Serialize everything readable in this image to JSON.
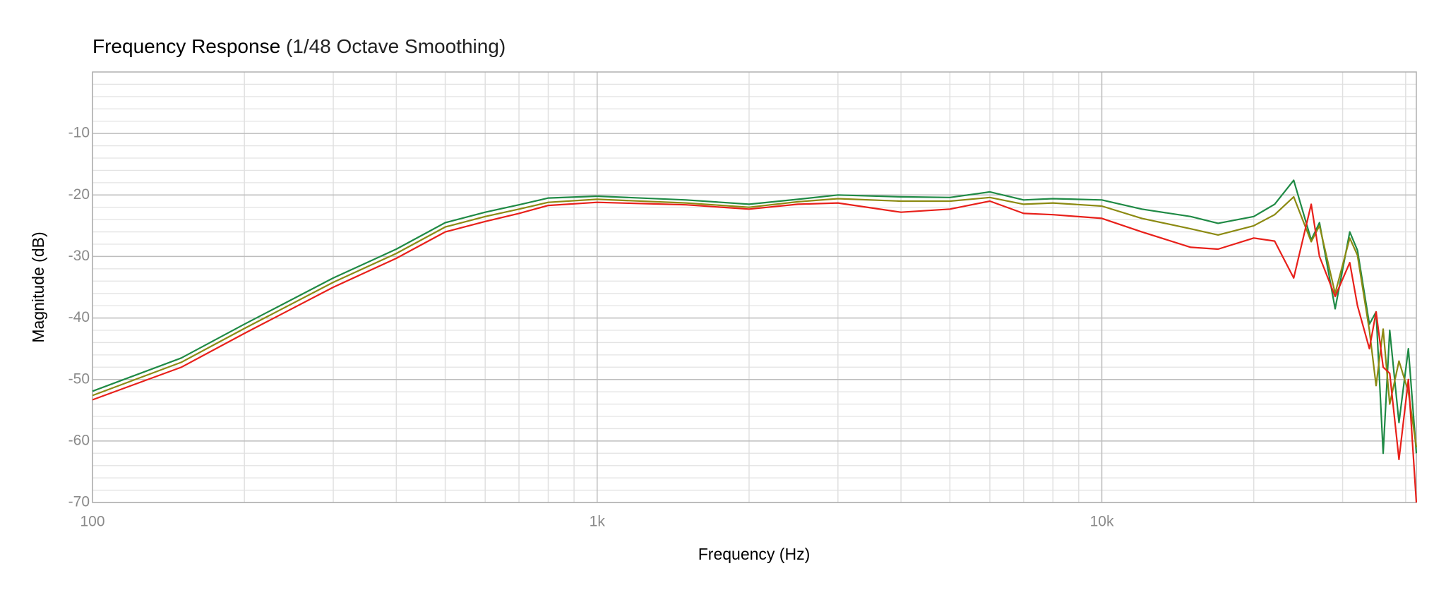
{
  "chart_data": {
    "type": "line",
    "title": "Frequency Response",
    "subtitle": "(1/48 Octave Smoothing)",
    "x_label": "Frequency (Hz)",
    "y_label": "Magnitude (dB)",
    "x_scale": "log",
    "xlim": [
      100,
      42000
    ],
    "ylim": [
      -70,
      0
    ],
    "xticks": [
      100,
      {
        "value": 1000,
        "label": "1k"
      },
      {
        "value": 10000,
        "label": "10k"
      }
    ],
    "x_minor_ticks": [
      200,
      300,
      400,
      500,
      600,
      700,
      800,
      900,
      2000,
      3000,
      4000,
      5000,
      6000,
      7000,
      8000,
      9000,
      20000,
      30000,
      40000
    ],
    "yticks": [
      -70,
      -60,
      -50,
      -40,
      -30,
      -20,
      -10
    ],
    "y_minor_ticks": [
      -68,
      -66,
      -64,
      -62,
      -58,
      -56,
      -54,
      -52,
      -48,
      -46,
      -44,
      -42,
      -38,
      -36,
      -34,
      -32,
      -28,
      -26,
      -24,
      -22,
      -18,
      -16,
      -14,
      -12,
      -8,
      -6,
      -4,
      -2
    ],
    "grid": true,
    "x": [
      100,
      150,
      200,
      300,
      400,
      500,
      600,
      700,
      800,
      1000,
      1500,
      2000,
      2500,
      3000,
      4000,
      5000,
      6000,
      7000,
      8000,
      10000,
      12000,
      15000,
      17000,
      20000,
      22000,
      24000,
      26000,
      27000,
      29000,
      31000,
      32100,
      33900,
      34950,
      36100,
      37200,
      38800,
      40500,
      42000
    ],
    "series": [
      {
        "color": "#1f8a45",
        "values": [
          -51.9,
          -46.5,
          -41,
          -33.5,
          -28.8,
          -24.5,
          -22.8,
          -21.6,
          -20.5,
          -20.2,
          -20.8,
          -21.5,
          -20.7,
          -20,
          -20.3,
          -20.4,
          -19.5,
          -20.8,
          -20.6,
          -20.8,
          -22.3,
          -23.5,
          -24.6,
          -23.5,
          -21.5,
          -17.6,
          -27.3,
          -24.5,
          -38.5,
          -26,
          -29,
          -41,
          -39,
          -62,
          -42,
          -57,
          -45,
          -62
        ]
      },
      {
        "color": "#8c8a12",
        "values": [
          -52.6,
          -47.2,
          -41.7,
          -34.2,
          -29.5,
          -25.2,
          -23.5,
          -22.3,
          -21.2,
          -20.7,
          -21.3,
          -22,
          -21.1,
          -20.6,
          -21,
          -21,
          -20.4,
          -21.5,
          -21.3,
          -21.8,
          -23.8,
          -25.5,
          -26.5,
          -25,
          -23.2,
          -20.3,
          -27.6,
          -25,
          -36,
          -27,
          -29.8,
          -42,
          -51,
          -41.8,
          -54,
          -47,
          -52,
          -61
        ]
      },
      {
        "color": "#e8201a",
        "values": [
          -53.3,
          -48,
          -42.5,
          -35,
          -30.3,
          -26,
          -24.3,
          -23,
          -21.7,
          -21.2,
          -21.6,
          -22.3,
          -21.5,
          -21.3,
          -22.8,
          -22.3,
          -21,
          -23,
          -23.2,
          -23.8,
          -26,
          -28.5,
          -28.8,
          -27,
          -27.5,
          -33.5,
          -21.5,
          -30,
          -36.5,
          -31,
          -38,
          -45,
          -39,
          -48,
          -49,
          -63,
          -50,
          -70
        ]
      }
    ]
  }
}
